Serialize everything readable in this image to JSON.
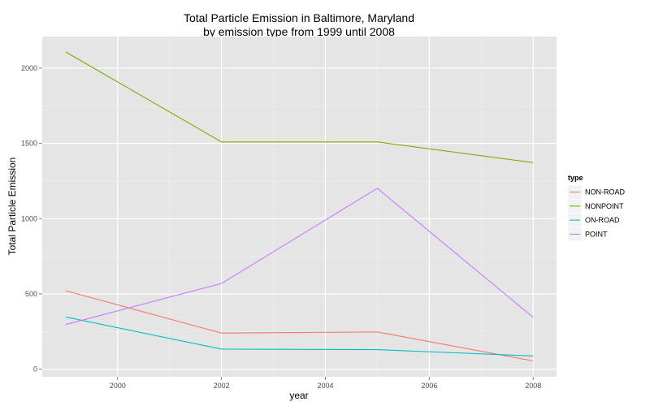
{
  "chart_data": {
    "type": "line",
    "title": "Total Particle Emission in Baltimore, Maryland",
    "subtitle": "by emission type from 1999 until 2008",
    "xlabel": "year",
    "ylabel": "Total Particle Emission",
    "x": [
      1999,
      2002,
      2005,
      2008
    ],
    "xlim": [
      1998.55,
      2008.45
    ],
    "ylim": [
      -50,
      2210
    ],
    "xticks": [
      2000,
      2002,
      2004,
      2006,
      2008
    ],
    "yticks": [
      0,
      500,
      1000,
      1500,
      2000
    ],
    "grid": true,
    "legend": {
      "title": "type",
      "position": "right"
    },
    "series": [
      {
        "name": "NON-ROAD",
        "color": "#F8766D",
        "values": [
          522,
          240,
          248,
          55
        ]
      },
      {
        "name": "NONPOINT",
        "color": "#7CAE00",
        "values": [
          2108,
          1510,
          1510,
          1373
        ]
      },
      {
        "name": "ON-ROAD",
        "color": "#00BFC4",
        "values": [
          347,
          134,
          130,
          88
        ]
      },
      {
        "name": "POINT",
        "color": "#C77CFF",
        "values": [
          297,
          570,
          1202,
          345
        ]
      }
    ]
  }
}
